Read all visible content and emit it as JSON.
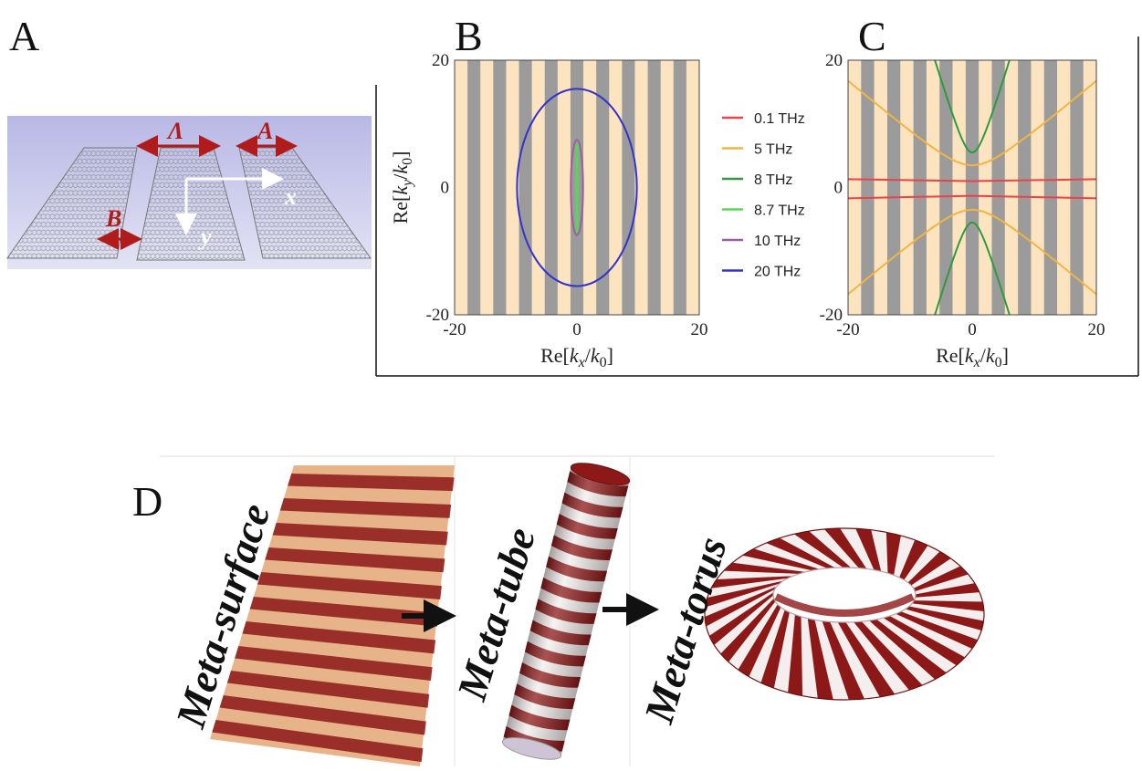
{
  "panels": {
    "a": {
      "letter": "A",
      "period_label": "Λ",
      "width_label": "A",
      "gap_label": "B",
      "x_label": "x",
      "y_label": "y"
    },
    "b": {
      "letter": "B"
    },
    "c": {
      "letter": "C"
    },
    "d": {
      "letter": "D"
    }
  },
  "chart_data": [
    {
      "type": "line",
      "panel": "B",
      "xlabel": "Re[kx/k0]",
      "ylabel": "Re[ky/k0]",
      "xlim": [
        -20,
        20
      ],
      "ylim": [
        -20,
        20
      ],
      "xticks": [
        "-20",
        "0",
        "20"
      ],
      "yticks": [
        "-20",
        "0",
        "20"
      ],
      "background": "alternating vertical stripes",
      "series": [
        {
          "name": "0.1 THz",
          "color": "#e8424a",
          "shape": "point",
          "values": []
        },
        {
          "name": "5 THz",
          "color": "#f2b443",
          "shape": "point",
          "values": []
        },
        {
          "name": "8 THz",
          "color": "#2e9a3d",
          "shape": "point",
          "values": []
        },
        {
          "name": "8.7 THz",
          "color": "#56d856",
          "shape": "line",
          "values": [
            [
              0,
              -7
            ],
            [
              0,
              7
            ]
          ]
        },
        {
          "name": "10 THz",
          "color": "#9a5ea2",
          "shape": "ellipse",
          "values": [
            {
              "cx": 0,
              "cy": 0,
              "rx": 1,
              "ry": 7.5
            }
          ]
        },
        {
          "name": "20 THz",
          "color": "#3333cc",
          "shape": "ellipse",
          "values": [
            {
              "cx": 0,
              "cy": 0,
              "rx": 9.8,
              "ry": 15.5
            }
          ]
        }
      ]
    },
    {
      "type": "line",
      "panel": "C",
      "xlabel": "Re[kx/k0]",
      "ylabel": "",
      "xlim": [
        -20,
        20
      ],
      "ylim": [
        -20,
        20
      ],
      "xticks": [
        "-20",
        "0",
        "20"
      ],
      "yticks": [
        "-20",
        "0",
        "20"
      ],
      "background": "alternating vertical stripes",
      "series": [
        {
          "name": "0.1 THz",
          "color": "#e8424a",
          "shape": "lines",
          "values": [
            [
              [
                -20,
                1.3
              ],
              [
                0,
                1.0
              ],
              [
                20,
                1.3
              ]
            ],
            [
              [
                -20,
                -1.7
              ],
              [
                0,
                -1.3
              ],
              [
                20,
                -1.7
              ]
            ]
          ]
        },
        {
          "name": "5 THz",
          "color": "#f2b443",
          "shape": "hyperbola",
          "values": [
            {
              "a": 3.5,
              "slope": 0.82
            }
          ]
        },
        {
          "name": "8 THz",
          "color": "#2e9a3d",
          "shape": "hyperbola",
          "values": [
            {
              "a": 5.5,
              "slope": 3.2
            }
          ]
        }
      ]
    }
  ],
  "diagram_d": {
    "labels": [
      "Meta-surface",
      "Meta-tube",
      "Meta-torus"
    ]
  },
  "colors": {
    "stripe_light": "#fde4c0",
    "stripe_dark": "#9b9b9b",
    "meta_red": "#8c1818",
    "meta_tan": "#e7b48a",
    "meta_white": "#f4eeee",
    "panel_a_bg": "#c4c4e8",
    "panel_a_arrow": "#b01c1c"
  }
}
